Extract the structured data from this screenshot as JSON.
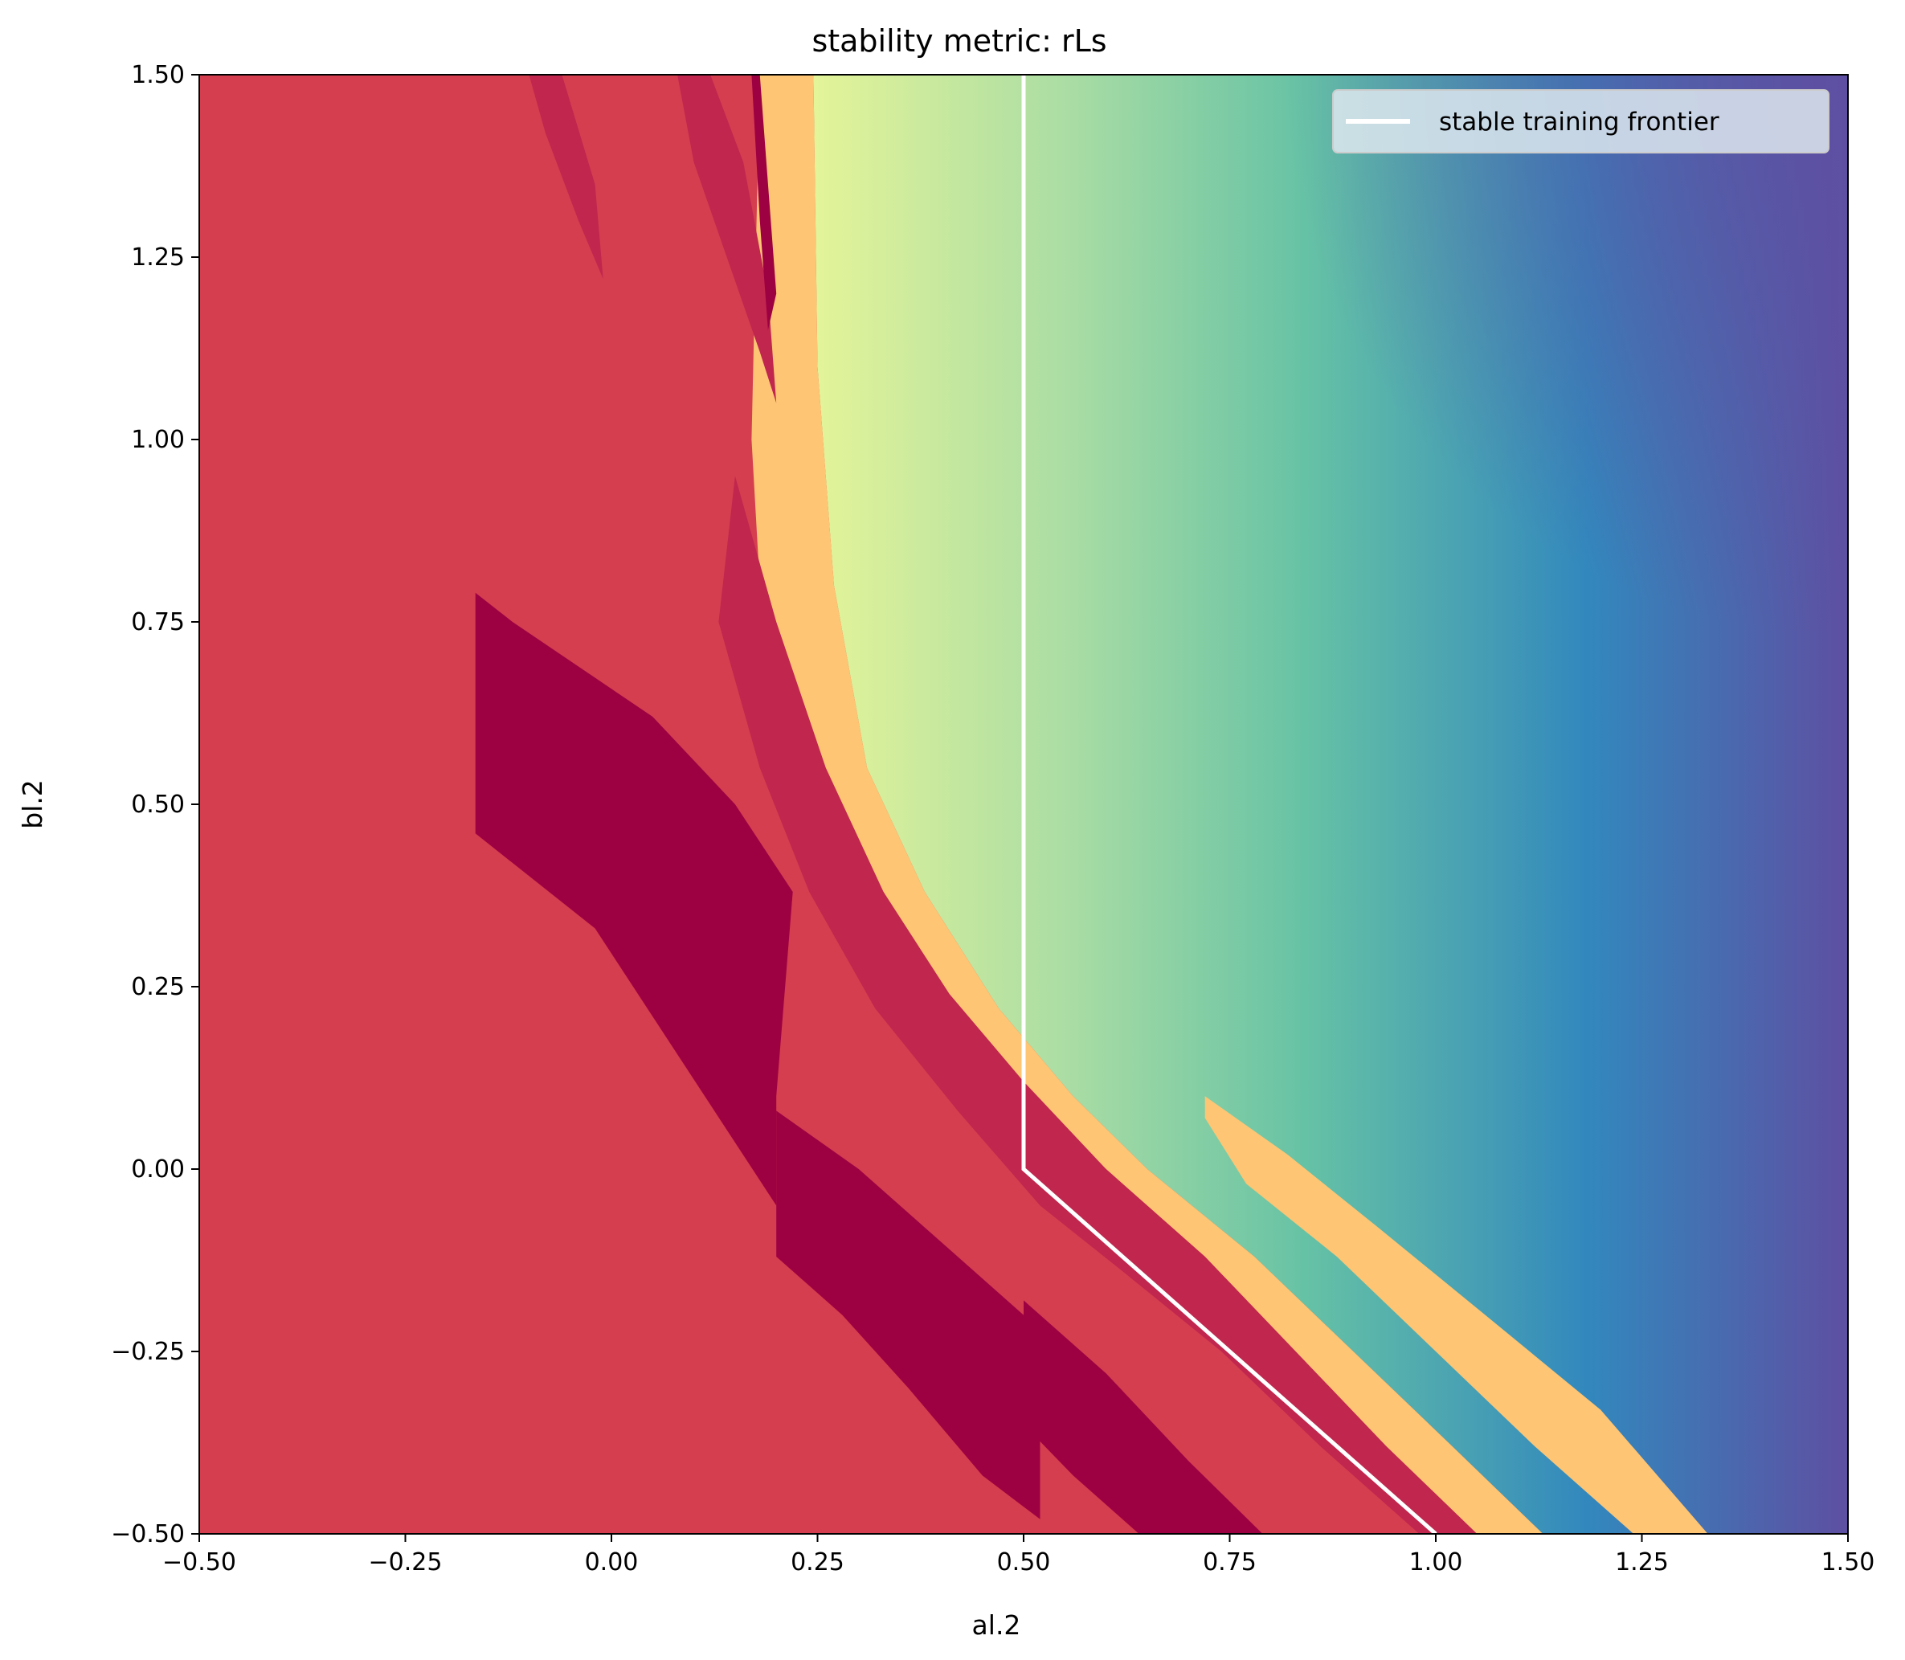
{
  "chart_data": {
    "type": "heatmap",
    "title": "stability metric: rLs",
    "xlabel": "al.2",
    "ylabel": "bl.2",
    "xlim": [
      -0.5,
      1.5
    ],
    "ylim": [
      -0.5,
      1.5
    ],
    "xticks": [
      "−0.50",
      "−0.25",
      "0.00",
      "0.25",
      "0.50",
      "0.75",
      "1.00",
      "1.25",
      "1.50"
    ],
    "yticks": [
      "−0.50",
      "−0.25",
      "0.00",
      "0.25",
      "0.50",
      "0.75",
      "1.00",
      "1.25",
      "1.50"
    ],
    "xtick_values": [
      -0.5,
      -0.25,
      0,
      0.25,
      0.5,
      0.75,
      1.0,
      1.25,
      1.5
    ],
    "ytick_values": [
      -0.5,
      -0.25,
      0,
      0.25,
      0.5,
      0.75,
      1.0,
      1.25,
      1.5
    ],
    "colormap": "Spectral",
    "colors": {
      "unstable": "#d53e4f",
      "unstable_dark": "#9e0142",
      "unstable_mid": "#c0264e",
      "edge": "#fdc574",
      "mid_yellow": "#e6f598",
      "mid_green": "#66c2a5",
      "blue": "#3288bd",
      "purple": "#5e4fa2",
      "frontier": "#ffffff"
    },
    "grid": false,
    "legend": {
      "placement": "top-right",
      "entries": [
        {
          "label": "stable training frontier",
          "color": "#ffffff"
        }
      ]
    },
    "series": [
      {
        "name": "stable training frontier",
        "type": "line",
        "x": [
          0.5,
          0.5,
          1.0
        ],
        "y": [
          1.5,
          0.0,
          -0.5
        ]
      }
    ]
  }
}
